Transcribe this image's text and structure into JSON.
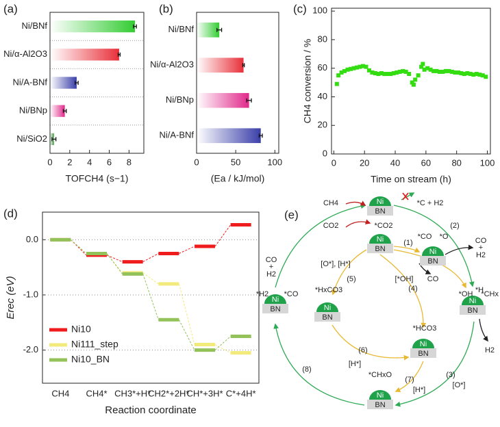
{
  "chart_data": [
    {
      "type": "bar",
      "label": "(a)",
      "orientation": "horizontal",
      "separators": true,
      "categories": [
        "Ni/BNf",
        "Ni/α-Al2O3",
        "Ni/A-BNf",
        "Ni/BNp",
        "Ni/SiO2"
      ],
      "values": [
        8.6,
        7.0,
        2.7,
        1.5,
        0.4
      ],
      "errors": [
        0.15,
        0.1,
        0.15,
        0.15,
        0.2
      ],
      "colors": [
        "#33cc33",
        "#e8303a",
        "#3a3fa8",
        "#e0288a",
        "#3a9a3a"
      ],
      "xlabel": "TOFCH4 (s−1)",
      "xlim": [
        0,
        9.5
      ],
      "xticks": [
        0,
        2,
        4,
        6,
        8
      ]
    },
    {
      "type": "bar",
      "label": "(b)",
      "orientation": "horizontal",
      "separators": false,
      "categories": [
        "Ni/BNf",
        "Ni/α-Al2O3",
        "Ni/BNp",
        "Ni/A-BNf"
      ],
      "values": [
        29,
        60,
        67,
        82
      ],
      "errors": [
        3,
        1,
        3,
        2
      ],
      "colors": [
        "#33cc33",
        "#e8303a",
        "#e0288a",
        "#3a3fa8"
      ],
      "xlabel": "(Ea / kJ/mol)",
      "xlim": [
        0,
        105
      ],
      "xticks": [
        0,
        50,
        100
      ]
    },
    {
      "type": "scatter",
      "label": "(c)",
      "color": "#33dd11",
      "x": [
        2,
        3,
        5,
        7,
        9,
        11,
        13,
        15,
        17,
        19,
        21,
        23,
        25,
        27,
        29,
        31,
        33,
        35,
        37,
        39,
        41,
        43,
        45,
        47,
        49,
        51,
        52,
        53,
        55,
        57,
        58,
        59,
        61,
        63,
        65,
        67,
        69,
        71,
        73,
        75,
        77,
        79,
        81,
        83,
        85,
        87,
        89,
        91,
        93,
        95,
        97,
        99
      ],
      "values": [
        49,
        55,
        57,
        58,
        59,
        59.5,
        60,
        60.5,
        61,
        61.5,
        61,
        58.5,
        57,
        56.5,
        56,
        56.5,
        56,
        56,
        56,
        56.5,
        57,
        57.5,
        58,
        57.5,
        56,
        50,
        48.5,
        52,
        55,
        61,
        63,
        59,
        60,
        59,
        58,
        58,
        57.5,
        57.5,
        58,
        58,
        57.5,
        57,
        57,
        56.5,
        56,
        56.5,
        56,
        55.5,
        56,
        55.5,
        55,
        54
      ],
      "xlabel": "Time on stream (h)",
      "ylabel": "CH4 conversion / %",
      "xlim": [
        -1.5,
        102
      ],
      "xticks": [
        0,
        20,
        40,
        60,
        80,
        100
      ],
      "ylim": [
        0,
        102
      ],
      "yticks": [
        0,
        20,
        40,
        60,
        80,
        100
      ]
    },
    {
      "type": "energy",
      "label": "(d)",
      "grid": true,
      "legend": "lower left",
      "categories": [
        "CH4",
        "CH4*",
        "CH3*+H*",
        "CH2*+2H*",
        "CH*+3H*",
        "C*+4H*"
      ],
      "series": [
        {
          "name": "Ni10",
          "color": "#ee1c1c",
          "values": [
            0,
            -0.28,
            -0.4,
            -0.25,
            -0.12,
            0.27
          ]
        },
        {
          "name": "Ni111_step",
          "color": "#f2ea7a",
          "values": [
            0,
            -0.25,
            -0.6,
            -0.8,
            -1.9,
            -2.05
          ]
        },
        {
          "name": "Ni10_BN",
          "color": "#93c15a",
          "values": [
            0,
            -0.25,
            -0.62,
            -1.45,
            -2.0,
            -1.75
          ]
        }
      ],
      "xlabel": "Reaction coordinate",
      "ylabel": "Erec (eV)",
      "ylim": [
        -2.6,
        0.5
      ],
      "yticks": [
        {
          "value": 0,
          "label": "0.0"
        },
        {
          "value": -1,
          "label": "-1.0"
        },
        {
          "value": -2,
          "label": "-2.0"
        }
      ]
    }
  ],
  "diagram": {
    "label": "(e)",
    "catalysts": [
      {
        "top": "Ni",
        "bottom": "BN"
      },
      {
        "top": "Ni",
        "bottom": "BN"
      },
      {
        "top": "Ni",
        "bottom": "BN"
      },
      {
        "top": "Ni",
        "bottom": "BN"
      },
      {
        "top": "Ni",
        "bottom": "BN"
      },
      {
        "top": "Ni",
        "bottom": "BN"
      },
      {
        "top": "Ni",
        "bottom": "BN"
      },
      {
        "top": "Ni",
        "bottom": "BN"
      }
    ],
    "labels": [
      "CH4",
      "CO2",
      "*C + H2",
      "*CO2",
      "(1)",
      "(2)",
      "*CO",
      "*O",
      "CO",
      "+",
      "H2",
      "[O*], [H*]",
      "(5)",
      "[*OH]",
      "CO",
      "(4)",
      "*HxCO3",
      "CO",
      "+",
      "H2",
      "*H2",
      "*CO",
      "*OH",
      "*H",
      "*CHx",
      "H2",
      "*HCO3",
      "(6)",
      "[H*]",
      "(7)",
      "[H*]",
      "(3)",
      "[O*]",
      "(8)",
      "*CHxO"
    ]
  }
}
